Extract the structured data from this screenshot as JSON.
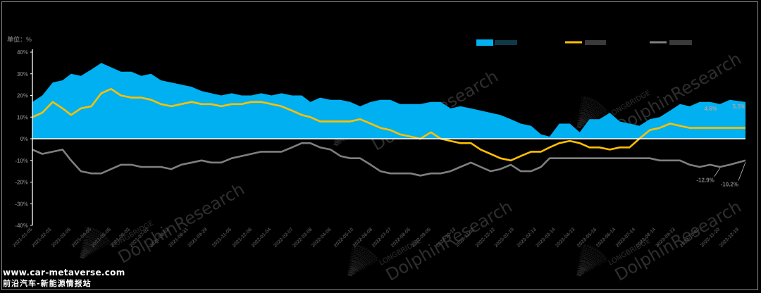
{
  "unit_label": "单位：%",
  "watermark": {
    "brand": "LONGBRIDGE",
    "name": "DolphinResearch"
  },
  "site": {
    "url": "www.car-metaverse.com",
    "name": "前沿汽车-新能源情报站"
  },
  "colors": {
    "area": "#00b0f0",
    "yellow": "#ffc000",
    "gray": "#7f7f7f",
    "axis": "#ffffff",
    "background": "#000000"
  },
  "chart_data": {
    "type": "area",
    "title": "",
    "ylim": [
      -40,
      40
    ],
    "yticks": [
      -40,
      -30,
      -20,
      -10,
      0,
      10,
      20,
      30,
      40
    ],
    "ytick_labels": [
      "-40%",
      "-30%",
      "-20%",
      "-10%",
      "0%",
      "10%",
      "20%",
      "30%",
      "40%"
    ],
    "grid": false,
    "legend_position": "top-right",
    "x_range": [
      "2021-01-05",
      "2023-12-29"
    ],
    "x_tick_labels": [
      "2021-01-05",
      "2021-02-03",
      "2021-03-05",
      "2021-04-05",
      "2021-05-05",
      "2021-06-03",
      "2021-07-02",
      "2021-08-02",
      "2021-08-31",
      "2021-09-29",
      "2021-11-05",
      "2021-12-06",
      "2022-01-04",
      "2022-02-07",
      "2022-03-08",
      "2022-04-06",
      "2022-05-10",
      "2022-06-08",
      "2022-07-07",
      "2022-08-05",
      "2022-09-05",
      "2022-10-13",
      "2022-11-11",
      "2022-12-12",
      "2023-01-10",
      "2023-02-13",
      "2023-03-14",
      "2023-04-13",
      "2023-05-16",
      "2023-06-14",
      "2023-07-14",
      "2023-08-14",
      "2023-09-13",
      "2023-10-20",
      "2023-11-20",
      "2023-12-19"
    ],
    "series": [
      {
        "name": "",
        "style": "area",
        "color": "#00b0f0",
        "x": [
          "2021-01-05",
          "2021-01-20",
          "2021-02-05",
          "2021-02-20",
          "2021-03-05",
          "2021-03-20",
          "2021-04-05",
          "2021-04-20",
          "2021-05-05",
          "2021-05-20",
          "2021-06-05",
          "2021-06-20",
          "2021-07-05",
          "2021-07-20",
          "2021-08-05",
          "2021-08-20",
          "2021-09-05",
          "2021-09-20",
          "2021-10-05",
          "2021-10-20",
          "2021-11-05",
          "2021-11-20",
          "2021-12-05",
          "2021-12-20",
          "2022-01-05",
          "2022-01-20",
          "2022-02-05",
          "2022-02-20",
          "2022-03-05",
          "2022-03-20",
          "2022-04-05",
          "2022-04-20",
          "2022-05-05",
          "2022-05-20",
          "2022-06-05",
          "2022-06-20",
          "2022-07-05",
          "2022-07-20",
          "2022-08-05",
          "2022-08-20",
          "2022-09-05",
          "2022-09-20",
          "2022-10-05",
          "2022-10-20",
          "2022-11-05",
          "2022-11-20",
          "2022-12-05",
          "2022-12-20",
          "2023-01-05",
          "2023-01-20",
          "2023-02-05",
          "2023-02-20",
          "2023-03-05",
          "2023-03-20",
          "2023-04-05",
          "2023-04-20",
          "2023-05-05",
          "2023-05-20",
          "2023-06-05",
          "2023-06-20",
          "2023-07-05",
          "2023-07-20",
          "2023-08-05",
          "2023-08-20",
          "2023-09-05",
          "2023-09-20",
          "2023-10-05",
          "2023-10-20",
          "2023-11-05",
          "2023-11-20",
          "2023-12-05",
          "2023-12-29"
        ],
        "values": [
          17,
          20,
          26,
          27,
          30,
          29,
          32,
          35,
          33,
          31,
          31,
          29,
          30,
          27,
          26,
          25,
          24,
          22,
          21,
          20,
          21,
          20,
          20,
          21,
          20,
          21,
          20,
          20,
          17,
          19,
          18,
          18,
          17,
          15,
          17,
          18,
          18,
          16,
          16,
          16,
          17,
          17,
          14,
          15,
          14,
          13,
          12,
          11,
          9,
          7,
          6,
          2,
          1,
          7,
          7,
          3,
          9,
          9,
          12,
          8,
          7,
          6,
          9,
          10,
          13,
          16,
          15,
          17,
          17,
          16,
          18,
          17
        ]
      },
      {
        "name": "",
        "style": "line",
        "color": "#ffc000",
        "x": [
          "2021-01-05",
          "2021-01-20",
          "2021-02-05",
          "2021-02-20",
          "2021-03-05",
          "2021-03-20",
          "2021-04-05",
          "2021-04-20",
          "2021-05-05",
          "2021-05-20",
          "2021-06-05",
          "2021-06-20",
          "2021-07-05",
          "2021-07-20",
          "2021-08-05",
          "2021-08-20",
          "2021-09-05",
          "2021-09-20",
          "2021-10-05",
          "2021-10-20",
          "2021-11-05",
          "2021-11-20",
          "2021-12-05",
          "2021-12-20",
          "2022-01-05",
          "2022-01-20",
          "2022-02-05",
          "2022-02-20",
          "2022-03-05",
          "2022-03-20",
          "2022-04-05",
          "2022-04-20",
          "2022-05-05",
          "2022-05-20",
          "2022-06-05",
          "2022-06-20",
          "2022-07-05",
          "2022-07-20",
          "2022-08-05",
          "2022-08-20",
          "2022-09-05",
          "2022-09-20",
          "2022-10-05",
          "2022-10-20",
          "2022-11-05",
          "2022-11-20",
          "2022-12-05",
          "2022-12-20",
          "2023-01-05",
          "2023-01-20",
          "2023-02-05",
          "2023-02-20",
          "2023-03-05",
          "2023-03-20",
          "2023-04-05",
          "2023-04-20",
          "2023-05-05",
          "2023-05-20",
          "2023-06-05",
          "2023-06-20",
          "2023-07-05",
          "2023-07-20",
          "2023-08-05",
          "2023-08-20",
          "2023-09-05",
          "2023-09-20",
          "2023-10-05",
          "2023-10-20",
          "2023-11-05",
          "2023-11-20",
          "2023-12-05",
          "2023-12-29"
        ],
        "values": [
          10,
          12,
          17,
          14,
          11,
          14,
          15,
          21,
          23,
          20,
          19,
          19,
          18,
          16,
          15,
          16,
          17,
          16,
          16,
          15,
          16,
          16,
          17,
          17,
          16,
          15,
          13,
          11,
          10,
          8,
          8,
          8,
          8,
          9,
          7,
          5,
          4,
          2,
          1,
          0,
          3,
          0,
          -1,
          -2,
          -2,
          -5,
          -7,
          -9,
          -10,
          -8,
          -6,
          -6,
          -4,
          -2,
          -1,
          -2,
          -4,
          -4,
          -5,
          -4,
          -4,
          0,
          4,
          5,
          7,
          6,
          5,
          5,
          5,
          5,
          5,
          5
        ]
      },
      {
        "name": "",
        "style": "line",
        "color": "#7f7f7f",
        "x": [
          "2021-01-05",
          "2021-01-20",
          "2021-02-05",
          "2021-02-20",
          "2021-03-05",
          "2021-03-20",
          "2021-04-05",
          "2021-04-20",
          "2021-05-05",
          "2021-05-20",
          "2021-06-05",
          "2021-06-20",
          "2021-07-05",
          "2021-07-20",
          "2021-08-05",
          "2021-08-20",
          "2021-09-05",
          "2021-09-20",
          "2021-10-05",
          "2021-10-20",
          "2021-11-05",
          "2021-11-20",
          "2021-12-05",
          "2021-12-20",
          "2022-01-05",
          "2022-01-20",
          "2022-02-05",
          "2022-02-20",
          "2022-03-05",
          "2022-03-20",
          "2022-04-05",
          "2022-04-20",
          "2022-05-05",
          "2022-05-20",
          "2022-06-05",
          "2022-06-20",
          "2022-07-05",
          "2022-07-20",
          "2022-08-05",
          "2022-08-20",
          "2022-09-05",
          "2022-09-20",
          "2022-10-05",
          "2022-10-20",
          "2022-11-05",
          "2022-11-20",
          "2022-12-05",
          "2022-12-20",
          "2023-01-05",
          "2023-01-20",
          "2023-02-05",
          "2023-02-20",
          "2023-03-05",
          "2023-03-20",
          "2023-04-05",
          "2023-04-20",
          "2023-05-05",
          "2023-05-20",
          "2023-06-05",
          "2023-06-20",
          "2023-07-05",
          "2023-07-20",
          "2023-08-05",
          "2023-08-20",
          "2023-09-05",
          "2023-09-20",
          "2023-10-05",
          "2023-10-20",
          "2023-11-05",
          "2023-11-20",
          "2023-12-05",
          "2023-12-29"
        ],
        "values": [
          -5,
          -7,
          -6,
          -5,
          -10,
          -15,
          -16,
          -16,
          -14,
          -12,
          -12,
          -13,
          -13,
          -13,
          -14,
          -12,
          -11,
          -10,
          -11,
          -11,
          -9,
          -8,
          -7,
          -6,
          -6,
          -6,
          -4,
          -2,
          -2,
          -4,
          -5,
          -8,
          -9,
          -9,
          -12,
          -15,
          -16,
          -16,
          -16,
          -17,
          -16,
          -16,
          -15,
          -13,
          -11,
          -13,
          -15,
          -14,
          -12,
          -15,
          -15,
          -13,
          -9,
          -9,
          -9,
          -9,
          -9,
          -9,
          -9,
          -9,
          -9,
          -9,
          -9,
          -10,
          -10,
          -10,
          -12,
          -13,
          -12,
          -13,
          -12,
          -10
        ]
      }
    ],
    "annotations": [
      {
        "text": "4.6%",
        "x": "2023-11-20",
        "y": 4.6,
        "series": 1
      },
      {
        "text": "5.5%",
        "x": "2023-12-29",
        "y": 5.5,
        "series": 1
      },
      {
        "text": "-12.9%",
        "x": "2023-11-20",
        "y": -12.9,
        "series": 2
      },
      {
        "text": "-10.2%",
        "x": "2023-12-29",
        "y": -10.2,
        "series": 2
      }
    ]
  }
}
